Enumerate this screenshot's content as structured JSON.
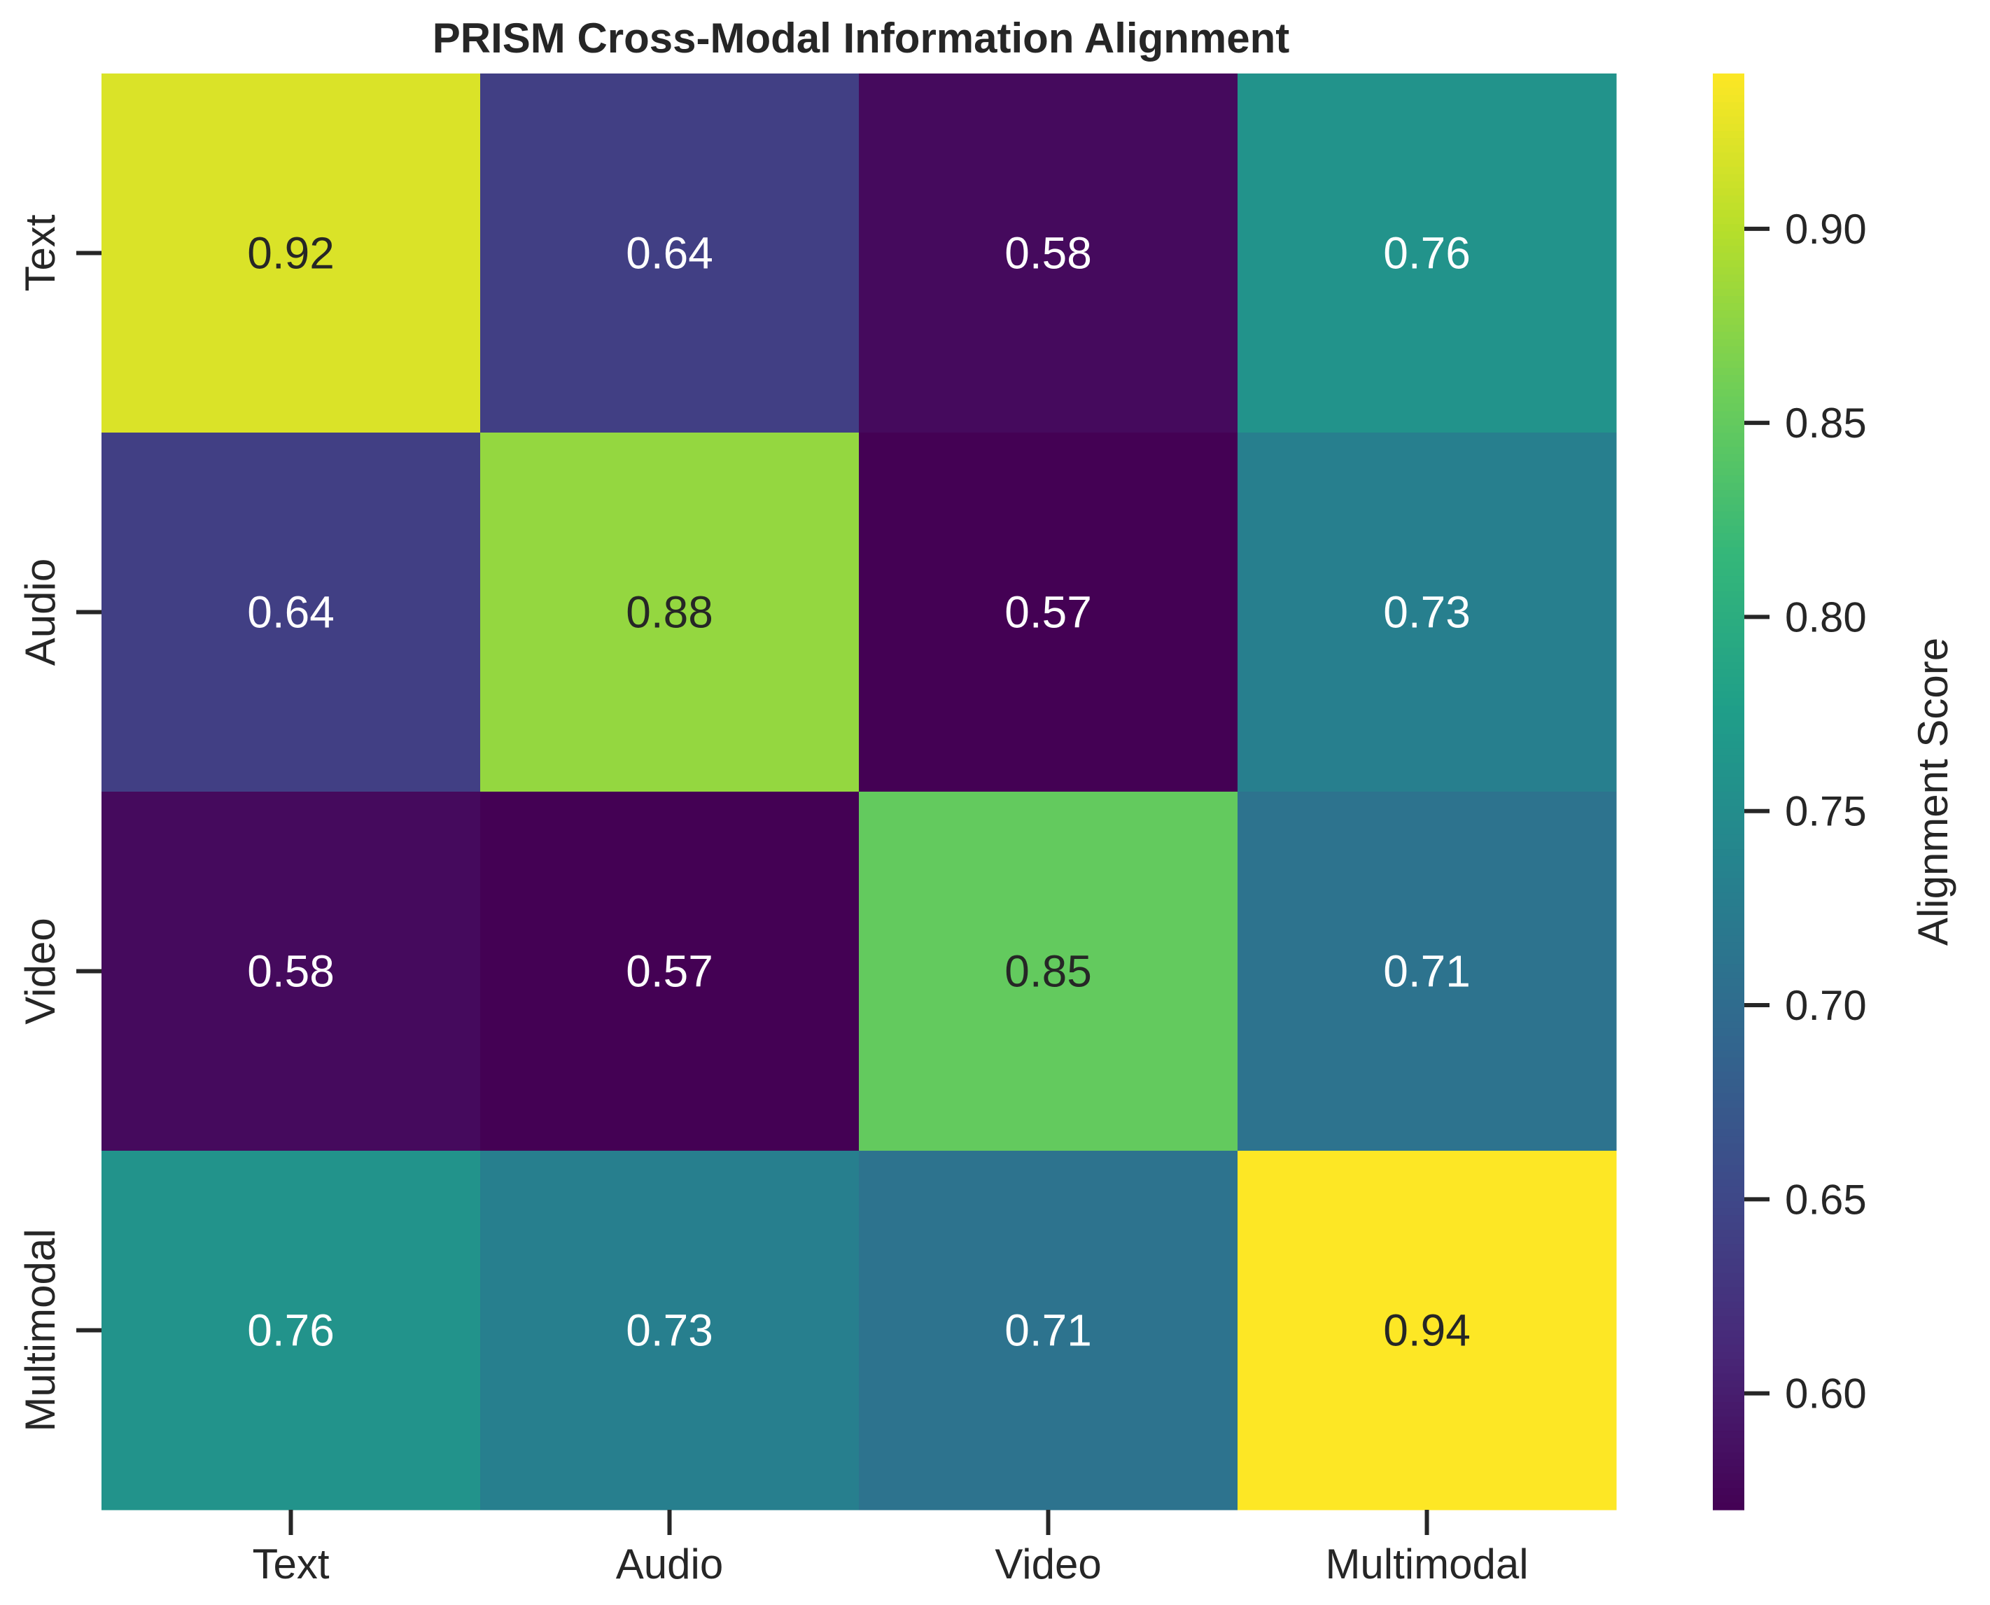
{
  "chart_data": {
    "type": "heatmap",
    "title": "PRISM Cross-Modal Information Alignment",
    "row_labels": [
      "Text",
      "Audio",
      "Video",
      "Multimodal"
    ],
    "col_labels": [
      "Text",
      "Audio",
      "Video",
      "Multimodal"
    ],
    "values": [
      [
        0.92,
        0.64,
        0.58,
        0.76
      ],
      [
        0.64,
        0.88,
        0.57,
        0.73
      ],
      [
        0.58,
        0.57,
        0.85,
        0.71
      ],
      [
        0.76,
        0.73,
        0.71,
        0.94
      ]
    ],
    "annotations": [
      [
        "0.92",
        "0.64",
        "0.58",
        "0.76"
      ],
      [
        "0.64",
        "0.88",
        "0.57",
        "0.73"
      ],
      [
        "0.58",
        "0.57",
        "0.85",
        "0.71"
      ],
      [
        "0.76",
        "0.73",
        "0.71",
        "0.94"
      ]
    ],
    "colormap": "viridis",
    "vmin": 0.57,
    "vmax": 0.94,
    "colorbar": {
      "label": "Alignment Score",
      "ticks": [
        0.6,
        0.65,
        0.7,
        0.75,
        0.8,
        0.85,
        0.9
      ],
      "tick_labels": [
        "0.60",
        "0.65",
        "0.70",
        "0.75",
        "0.80",
        "0.85",
        "0.90"
      ]
    },
    "grid": false,
    "colors": {
      "text_dark": "#262626",
      "text_light": "#ffffff",
      "tick": "#262626"
    }
  }
}
